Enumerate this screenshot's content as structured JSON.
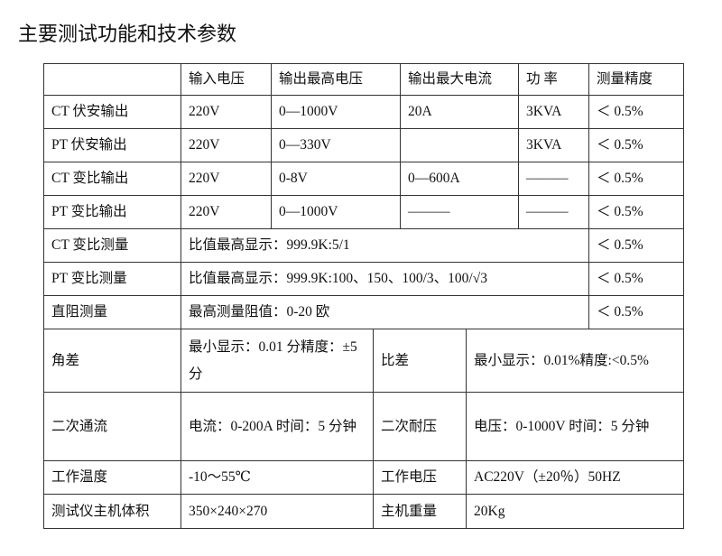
{
  "header": {
    "title": "主要测试功能和技术参数"
  },
  "table": {
    "columns": [
      "输入电压",
      "输出最高电压",
      "输出最大电流",
      "功 率",
      "测量精度"
    ],
    "output_rows": [
      {
        "name": "CT 伏安输出",
        "input": "220V",
        "max_voltage": "0—1000V",
        "max_current": "20A",
        "power": "3KVA",
        "accuracy": "＜ 0.5%"
      },
      {
        "name": "PT 伏安输出",
        "input": "220V",
        "max_voltage": "0—330V",
        "power": "3KVA",
        "accuracy": "＜ 0.5%"
      },
      {
        "name": "CT 变比输出",
        "input": "220V",
        "max_voltage": "0-8V",
        "max_current": "0—600A",
        "power": "———",
        "accuracy": "＜ 0.5%"
      },
      {
        "name": "PT 变比输出",
        "input": "220V",
        "max_voltage": "0—1000V",
        "max_current": "———",
        "power": "———",
        "accuracy": "＜ 0.5%"
      }
    ],
    "measure_rows": [
      {
        "name": "CT 变比测量",
        "detail": "比值最高显示：999.9K:5/1",
        "accuracy": "＜ 0.5%"
      },
      {
        "name": "PT 变比测量",
        "detail": "比值最高显示：999.9K:100、150、100/3、100/√3",
        "accuracy": "＜ 0.5%"
      },
      {
        "name": "直阻测量",
        "detail": "最高测量阻值：0-20 欧",
        "accuracy": "＜ 0.5%"
      }
    ],
    "spec_rows": [
      {
        "name": "角差",
        "value": "最小显示：0.01 分精度：±5 分",
        "name2": "比差",
        "value2": "最小显示：0.01%精度:<0.5%"
      },
      {
        "name": "二次通流",
        "value": "电流：0-200A 时间：5 分钟",
        "name2": "二次耐压",
        "value2": "电压：0-1000V 时间：5 分钟"
      },
      {
        "name": "工作温度",
        "value": "-10～55℃",
        "name2": "工作电压",
        "value2": "AC220V（±20％）50HZ"
      },
      {
        "name": "测试仪主机体积",
        "value": "350×240×270",
        "name2": "主机重量",
        "value2": "20Kg"
      }
    ]
  }
}
